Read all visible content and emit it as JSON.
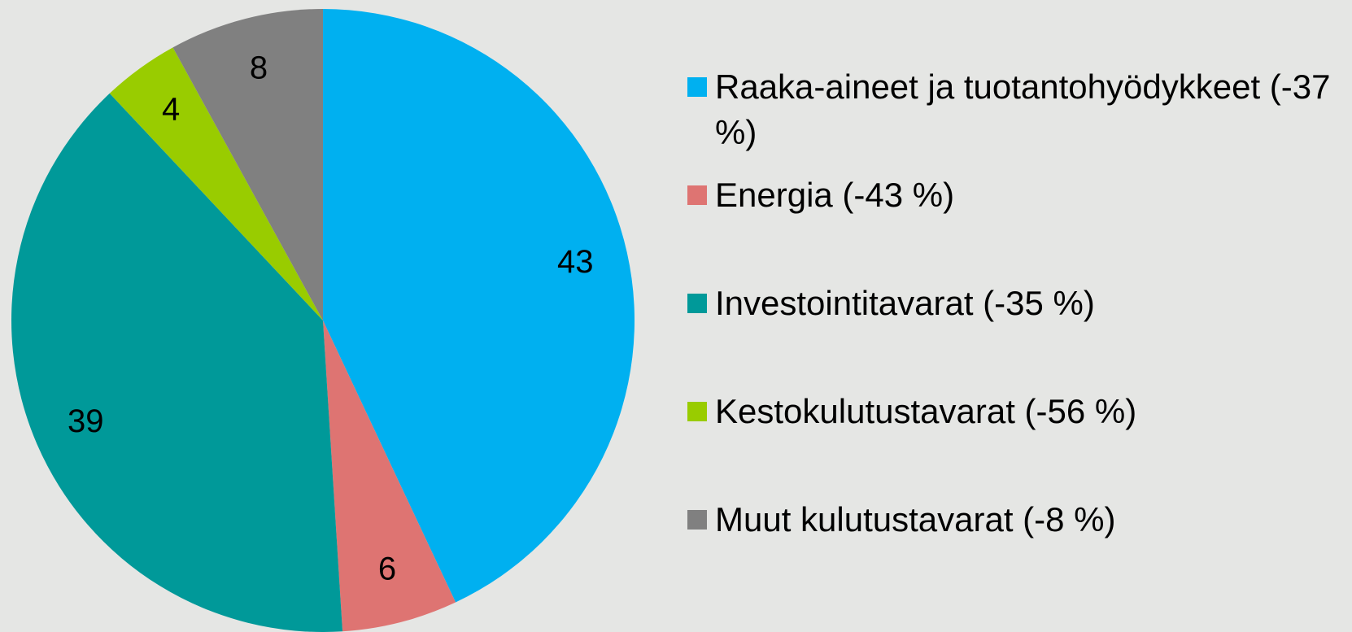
{
  "chart_data": {
    "type": "pie",
    "categories": [
      "Raaka-aineet ja tuotantohyödykkeet (-37 %)",
      "Energia (-43 %)",
      "Investointitavarat (-35 %)",
      "Kestokulutustavarat (-56 %)",
      "Muut kulutustavarat (-8 %)"
    ],
    "values": [
      43,
      6,
      39,
      4,
      8
    ],
    "colors": [
      "#00b0f0",
      "#de7472",
      "#009999",
      "#99cc00",
      "#808080"
    ],
    "legend": "right"
  }
}
